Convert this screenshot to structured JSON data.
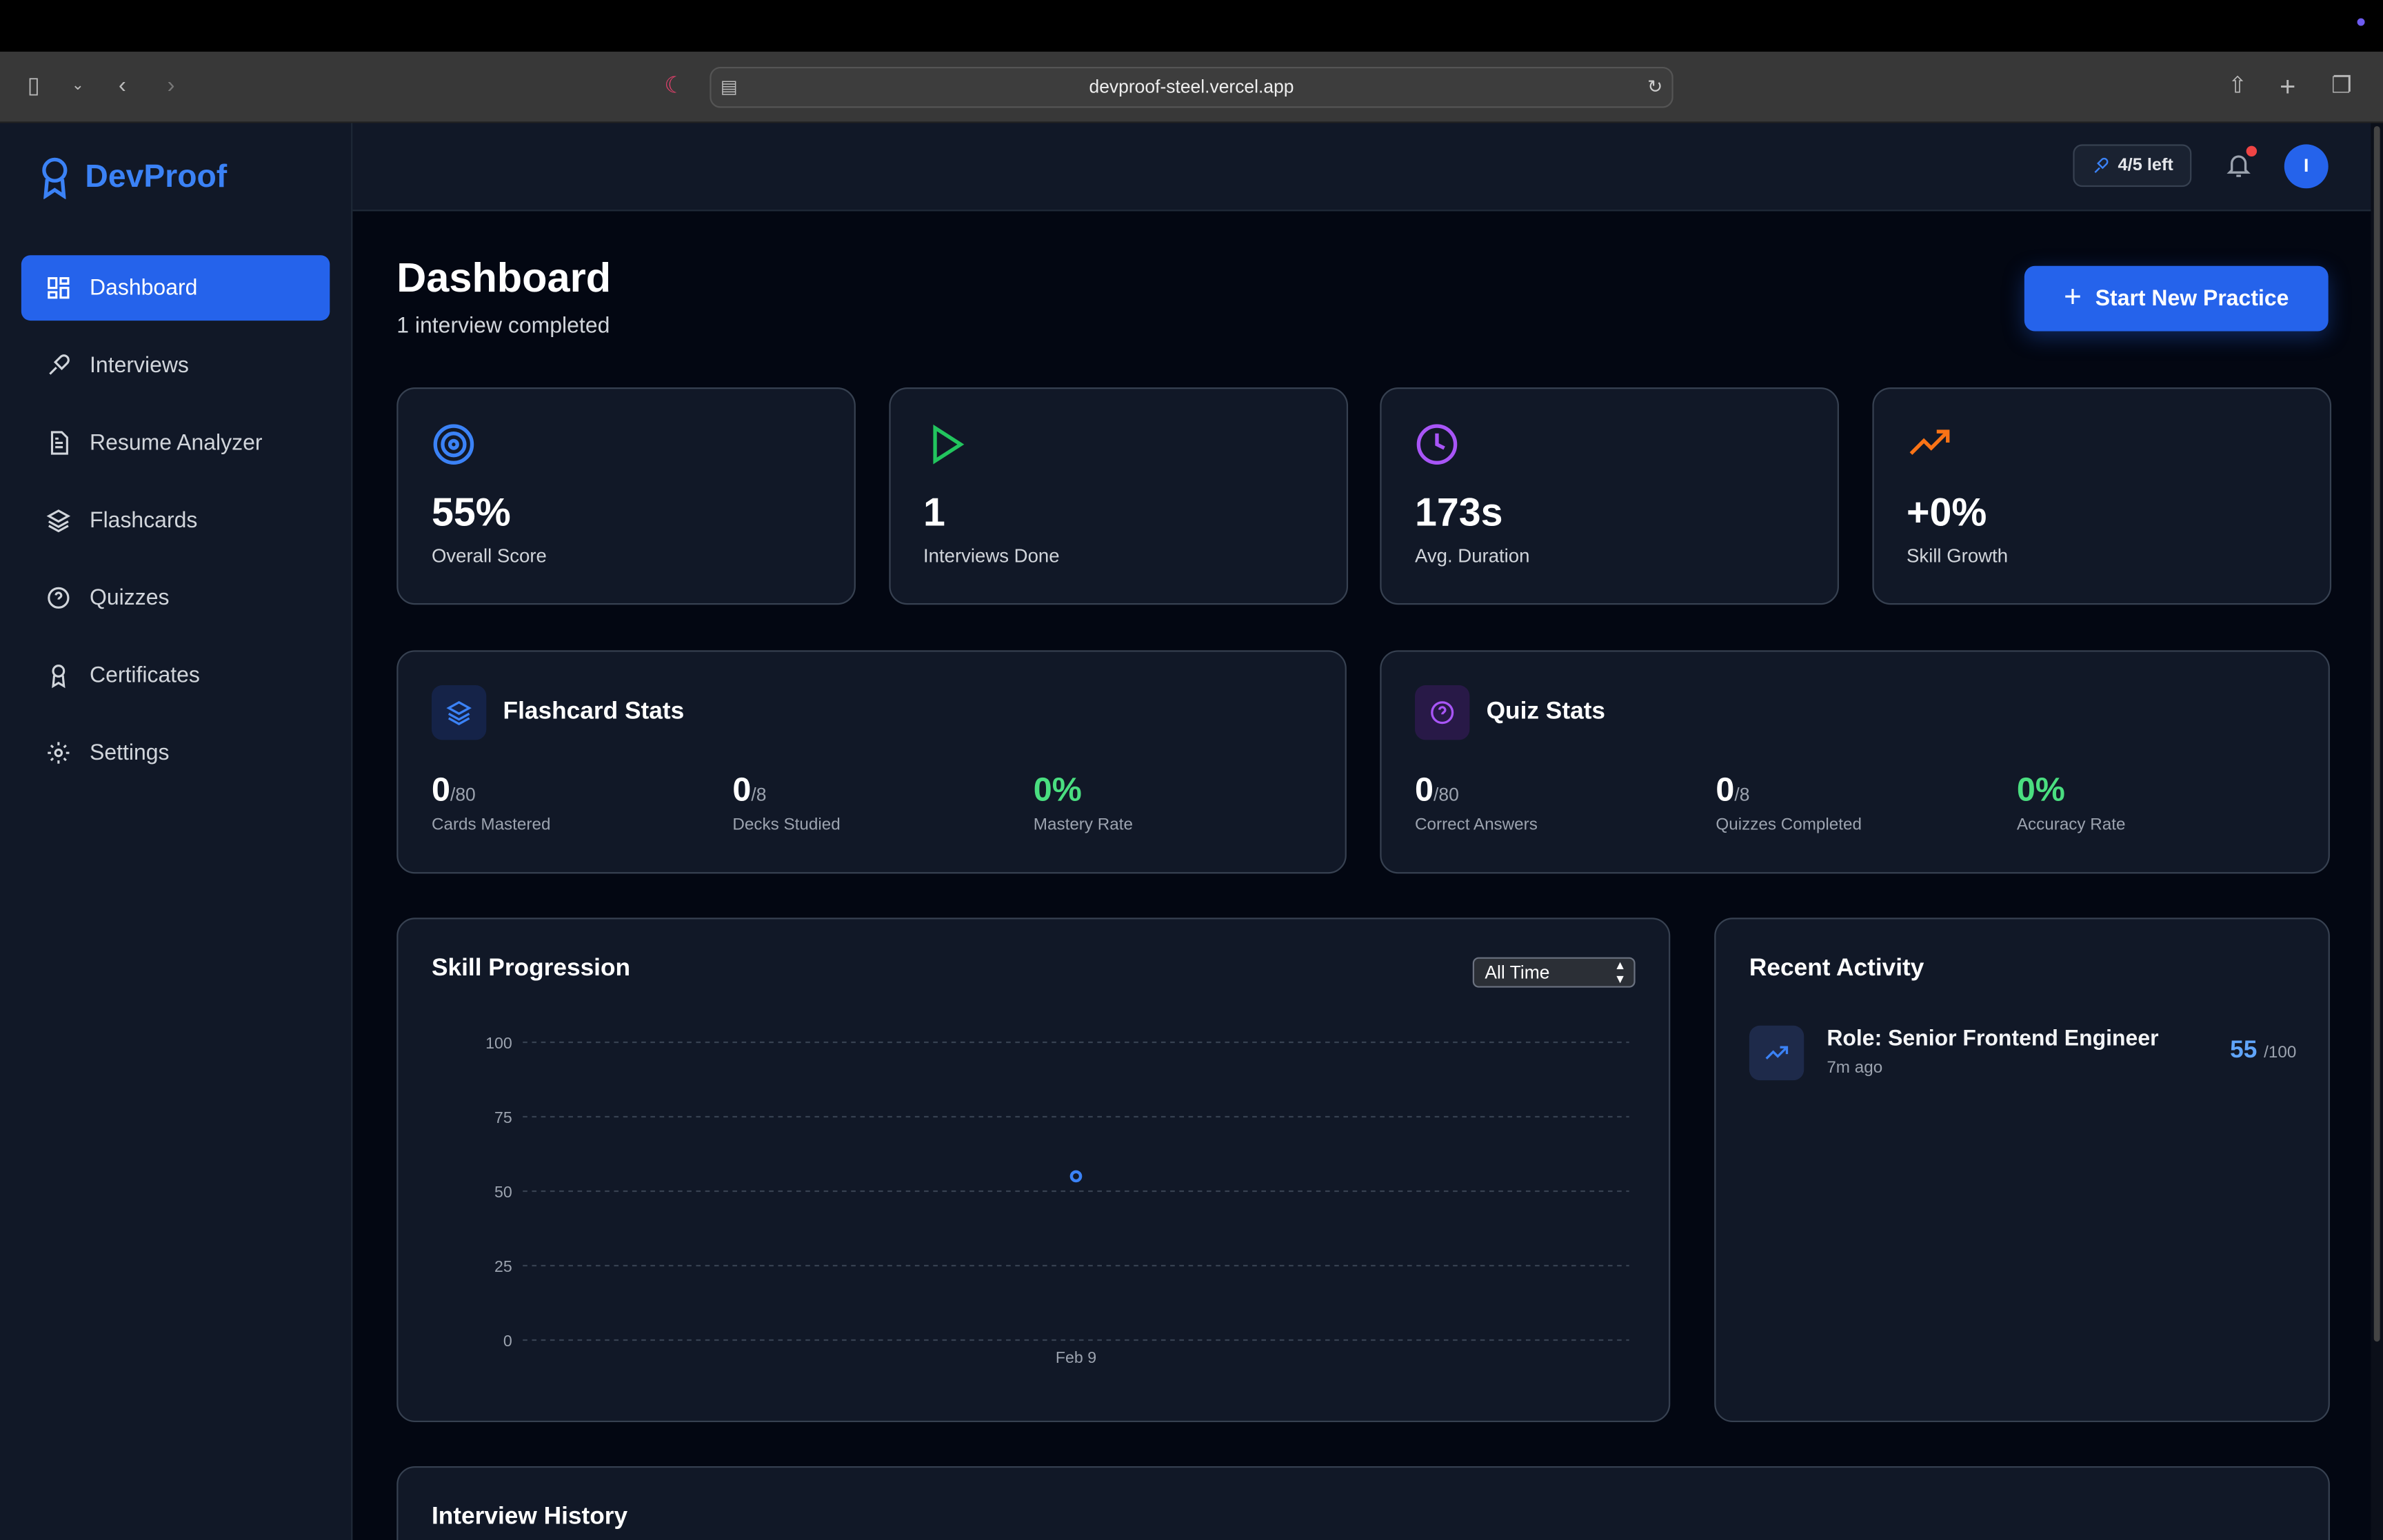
{
  "browser": {
    "url": "devproof-steel.vercel.app"
  },
  "app": {
    "name": "DevProof"
  },
  "sidebar": {
    "items": [
      {
        "label": "Dashboard",
        "icon": "grid-icon",
        "active": true
      },
      {
        "label": "Interviews",
        "icon": "mic-icon"
      },
      {
        "label": "Resume Analyzer",
        "icon": "file-icon"
      },
      {
        "label": "Flashcards",
        "icon": "layers-icon"
      },
      {
        "label": "Quizzes",
        "icon": "help-circle-icon"
      },
      {
        "label": "Certificates",
        "icon": "award-icon"
      },
      {
        "label": "Settings",
        "icon": "gear-icon"
      }
    ]
  },
  "header": {
    "quota": "4/5 left",
    "avatar_initial": "I",
    "has_notification": true
  },
  "page": {
    "title": "Dashboard",
    "subtitle": "1 interview completed",
    "primary_button": "Start New Practice"
  },
  "stats": [
    {
      "value": "55%",
      "label": "Overall Score",
      "icon": "target-icon",
      "color": "#3b82f6"
    },
    {
      "value": "1",
      "label": "Interviews Done",
      "icon": "play-icon",
      "color": "#22c55e"
    },
    {
      "value": "173s",
      "label": "Avg. Duration",
      "icon": "clock-icon",
      "color": "#a855f7"
    },
    {
      "value": "+0%",
      "label": "Skill Growth",
      "icon": "trending-up-icon",
      "color": "#f97316"
    }
  ],
  "flashcards": {
    "title": "Flashcard Stats",
    "items": [
      {
        "value": "0",
        "total": "/80",
        "label": "Cards Mastered"
      },
      {
        "value": "0",
        "total": "/8",
        "label": "Decks Studied"
      },
      {
        "value": "0%",
        "total": "",
        "label": "Mastery Rate"
      }
    ]
  },
  "quiz": {
    "title": "Quiz Stats",
    "items": [
      {
        "value": "0",
        "total": "/80",
        "label": "Correct Answers"
      },
      {
        "value": "0",
        "total": "/8",
        "label": "Quizzes Completed"
      },
      {
        "value": "0%",
        "total": "",
        "label": "Accuracy Rate"
      }
    ]
  },
  "skill": {
    "title": "Skill Progression",
    "range": "All Time"
  },
  "chart_data": {
    "type": "scatter",
    "title": "Skill Progression",
    "x": [
      "Feb 9"
    ],
    "y": [
      55
    ],
    "ylim": [
      0,
      100
    ],
    "yticks": [
      "0",
      "25",
      "50",
      "75",
      "100"
    ],
    "grid": true,
    "color": "#3b82f6"
  },
  "activity": {
    "title": "Recent Activity",
    "items": [
      {
        "title": "Role: Senior Frontend Engineer",
        "time": "7m ago",
        "score": "55",
        "max": "/100"
      }
    ]
  },
  "history": {
    "title": "Interview History"
  }
}
